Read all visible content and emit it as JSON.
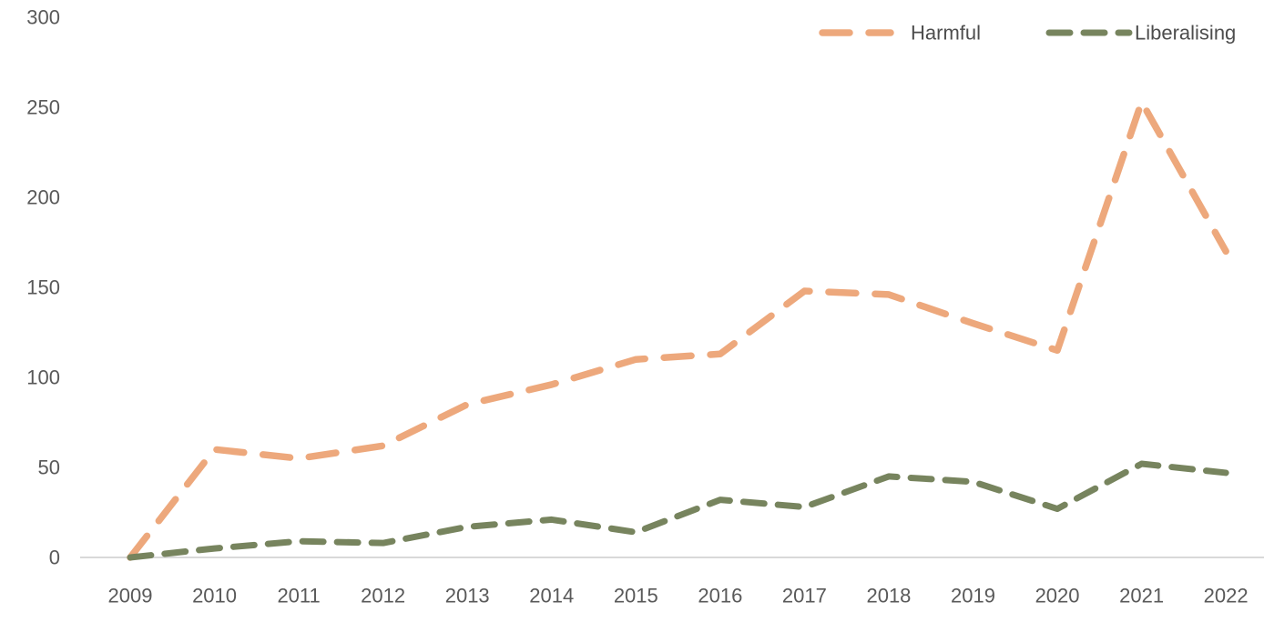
{
  "chart_data": {
    "type": "line",
    "title": "",
    "xlabel": "",
    "ylabel": "",
    "x": [
      "2009",
      "2010",
      "2011",
      "2012",
      "2013",
      "2014",
      "2015",
      "2016",
      "2017",
      "2018",
      "2019",
      "2020",
      "2021",
      "2022"
    ],
    "series": [
      {
        "name": "Harmful",
        "color": "#EDA87C",
        "dash": "30 21",
        "width": 7.5,
        "values": [
          0,
          60,
          55,
          62,
          85,
          96,
          110,
          113,
          148,
          146,
          130,
          115,
          253,
          170
        ]
      },
      {
        "name": "Liberalising",
        "color": "#77845E",
        "dash": "23 15",
        "width": 7,
        "values": [
          0,
          5,
          9,
          8,
          17,
          21,
          14,
          32,
          28,
          45,
          42,
          27,
          52,
          47
        ]
      }
    ],
    "ylim": [
      0,
      300
    ],
    "yticks": [
      0,
      50,
      100,
      150,
      200,
      250,
      300
    ],
    "grid": "off",
    "legend_position": "top-right",
    "line_style": "dashed"
  },
  "axes": {
    "tick_color": "#595959",
    "axis_line_color": "#D9D9D9",
    "legend_text_color": "#4d4d4d"
  }
}
